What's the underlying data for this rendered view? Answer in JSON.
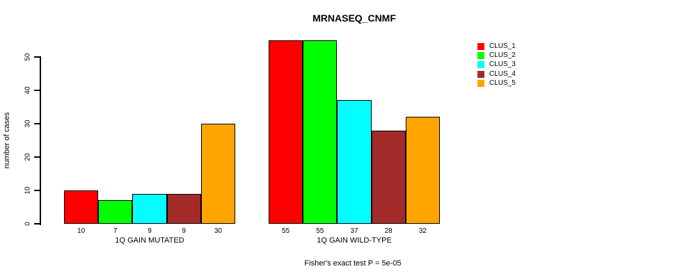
{
  "title": "MRNASEQ_CNMF",
  "caption": "Fisher's exact test P = 5e-05",
  "chart_data": {
    "type": "bar",
    "title": "MRNASEQ_CNMF",
    "xlabel": "",
    "ylabel": "number of cases",
    "ylim": [
      0,
      55
    ],
    "yticks": [
      0,
      10,
      20,
      30,
      40,
      50
    ],
    "grid": false,
    "legend_position": "right",
    "value_labels": true,
    "categories": [
      "1Q GAIN MUTATED",
      "1Q GAIN WILD-TYPE"
    ],
    "series": [
      {
        "name": "CLUS_1",
        "color": "#ff0000",
        "values": [
          10,
          55
        ]
      },
      {
        "name": "CLUS_2",
        "color": "#00ff00",
        "values": [
          7,
          55
        ]
      },
      {
        "name": "CLUS_3",
        "color": "#00ffff",
        "values": [
          9,
          37
        ]
      },
      {
        "name": "CLUS_4",
        "color": "#a52a2a",
        "values": [
          9,
          28
        ]
      },
      {
        "name": "CLUS_5",
        "color": "#ffa500",
        "values": [
          30,
          32
        ]
      }
    ],
    "annotation": "Fisher's exact test P = 5e-05",
    "axis_color": "#000000",
    "bar_border_color": "#000000"
  }
}
